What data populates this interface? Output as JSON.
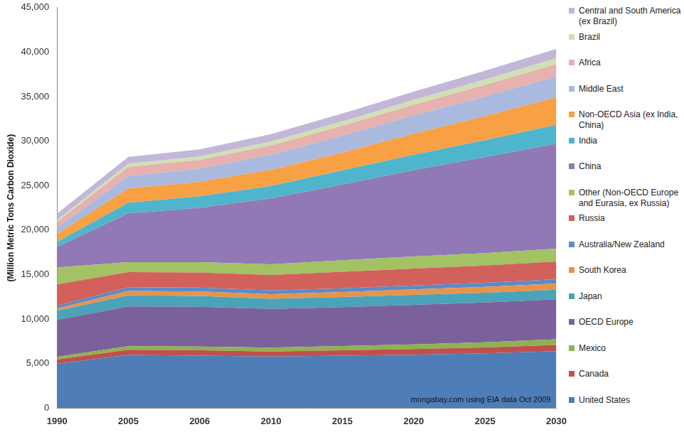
{
  "chart_data": {
    "type": "area",
    "ylabel": "(Million Metric Tons Carbon Dioxide)",
    "annotations": [
      "mongabay.com using EIA data Oct 2009"
    ],
    "categories": [
      "1990",
      "2005",
      "2006",
      "2010",
      "2015",
      "2020",
      "2025",
      "2030"
    ],
    "series": [
      {
        "name": "United States",
        "color": "#4f7db8",
        "values": [
          4990,
          5980,
          5900,
          5800,
          5900,
          6000,
          6150,
          6400
        ]
      },
      {
        "name": "Canada",
        "color": "#c0504d",
        "values": [
          470,
          580,
          590,
          560,
          600,
          630,
          660,
          690
        ]
      },
      {
        "name": "Mexico",
        "color": "#8fb24f",
        "values": [
          300,
          400,
          420,
          430,
          470,
          520,
          580,
          640
        ]
      },
      {
        "name": "OECD Europe",
        "color": "#7b619c",
        "values": [
          4150,
          4470,
          4480,
          4360,
          4380,
          4450,
          4470,
          4500
        ]
      },
      {
        "name": "Japan",
        "color": "#4aa3b8",
        "values": [
          1050,
          1230,
          1210,
          1140,
          1130,
          1120,
          1100,
          1080
        ]
      },
      {
        "name": "South Korea",
        "color": "#e8934a",
        "values": [
          240,
          500,
          510,
          520,
          570,
          620,
          660,
          690
        ]
      },
      {
        "name": "Australia/New Zealand",
        "color": "#5b8bc8",
        "values": [
          300,
          430,
          440,
          410,
          420,
          440,
          460,
          480
        ]
      },
      {
        "name": "Russia",
        "color": "#d2605b",
        "values": [
          2400,
          1700,
          1700,
          1750,
          1850,
          1900,
          1940,
          1990
        ]
      },
      {
        "name": "Other (Non-OECD Europe and Eurasia, ex Russia)",
        "color": "#a3c264",
        "values": [
          1900,
          1100,
          1150,
          1200,
          1300,
          1350,
          1400,
          1450
        ]
      },
      {
        "name": "China",
        "color": "#9079b4",
        "values": [
          2300,
          5500,
          6100,
          7400,
          8500,
          9700,
          10800,
          11800
        ]
      },
      {
        "name": "India",
        "color": "#4fb5cd",
        "values": [
          580,
          1200,
          1300,
          1400,
          1600,
          1750,
          1900,
          2100
        ]
      },
      {
        "name": "Non-OECD Asia (ex India, China)",
        "color": "#f8a044",
        "values": [
          900,
          1600,
          1650,
          1800,
          2000,
          2350,
          2700,
          3100
        ]
      },
      {
        "name": "Middle East",
        "color": "#aab9de",
        "values": [
          700,
          1400,
          1450,
          1700,
          1900,
          2050,
          2200,
          2350
        ]
      },
      {
        "name": "Africa",
        "color": "#e6b1ae",
        "values": [
          650,
          1000,
          1000,
          1050,
          1100,
          1200,
          1300,
          1400
        ]
      },
      {
        "name": "Brazil",
        "color": "#cfe1b2",
        "values": [
          210,
          370,
          380,
          430,
          480,
          540,
          590,
          650
        ]
      },
      {
        "name": "Central and South America (ex Brazil)",
        "color": "#c3b7d8",
        "values": [
          700,
          780,
          800,
          850,
          900,
          950,
          1000,
          1050
        ]
      }
    ],
    "ylim": [
      0,
      45000
    ],
    "yticks": [
      0,
      {
        "value": 5000,
        "label": "5,000"
      },
      {
        "value": 10000,
        "label": "10,000"
      },
      {
        "value": 15000,
        "label": "15,000"
      },
      {
        "value": 20000,
        "label": "20,000"
      },
      {
        "value": 25000,
        "label": "25,000"
      },
      {
        "value": 30000,
        "label": "30,000"
      },
      {
        "value": 35000,
        "label": "35,000"
      },
      {
        "value": 40000,
        "label": "40,000"
      },
      {
        "value": 45000,
        "label": "45,000"
      }
    ],
    "stacked": true,
    "grid": false,
    "legend": "right"
  }
}
